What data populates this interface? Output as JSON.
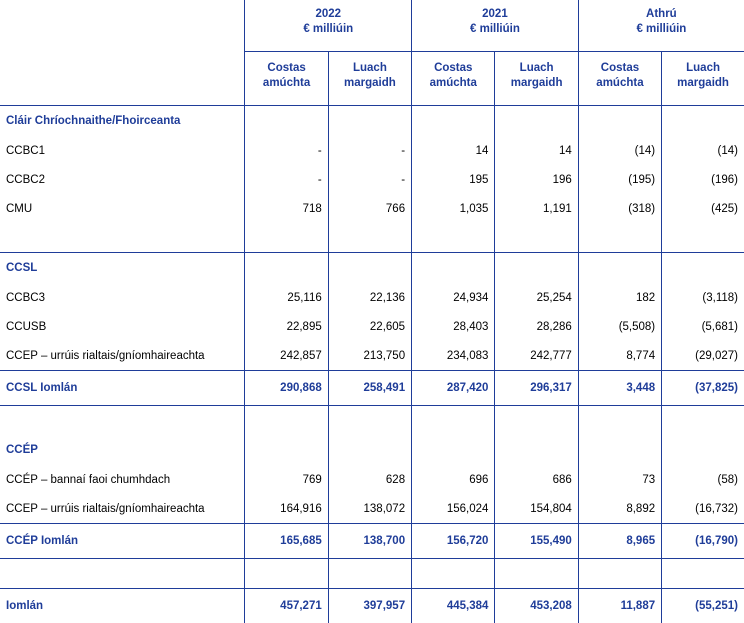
{
  "header": {
    "years": [
      {
        "year": "2022",
        "unit": "€ milliúin"
      },
      {
        "year": "2021",
        "unit": "€ milliúin"
      },
      {
        "year": "Athrú",
        "unit": "€ milliúin"
      }
    ],
    "col_cost": [
      "Costas",
      "amúchta"
    ],
    "col_market": [
      "Luach",
      "margaidh"
    ]
  },
  "sections": [
    {
      "title": "Cláir Chríochnaithe/Fhoirceanta",
      "rows": [
        {
          "label": "CCBC1",
          "values": [
            "-",
            "-",
            "14",
            "14",
            "(14)",
            "(14)"
          ]
        },
        {
          "label": "CCBC2",
          "values": [
            "-",
            "-",
            "195",
            "196",
            "(195)",
            "(196)"
          ]
        },
        {
          "label": "CMU",
          "values": [
            "718",
            "766",
            "1,035",
            "1,191",
            "(318)",
            "(425)"
          ]
        }
      ]
    },
    {
      "title": "CCSL",
      "rows": [
        {
          "label": "CCBC3",
          "values": [
            "25,116",
            "22,136",
            "24,934",
            "25,254",
            "182",
            "(3,118)"
          ]
        },
        {
          "label": "CCUSB",
          "values": [
            "22,895",
            "22,605",
            "28,403",
            "28,286",
            "(5,508)",
            "(5,681)"
          ]
        },
        {
          "label": "CCEP – urrúis rialtais/gníomhaireachta",
          "values": [
            "242,857",
            "213,750",
            "234,083",
            "242,777",
            "8,774",
            "(29,027)"
          ]
        }
      ],
      "total": {
        "label": "CCSL Iomlán",
        "values": [
          "290,868",
          "258,491",
          "287,420",
          "296,317",
          "3,448",
          "(37,825)"
        ]
      }
    },
    {
      "title": "CCÉP",
      "rows": [
        {
          "label": "CCÉP – bannaí faoi chumhdach",
          "values": [
            "769",
            "628",
            "696",
            "686",
            "73",
            "(58)"
          ]
        },
        {
          "label": "CCEP – urrúis rialtais/gníomhaireachta",
          "values": [
            "164,916",
            "138,072",
            "156,024",
            "154,804",
            "8,892",
            "(16,732)"
          ]
        }
      ],
      "total": {
        "label": "CCÉP Iomlán",
        "values": [
          "165,685",
          "138,700",
          "156,720",
          "155,490",
          "8,965",
          "(16,790)"
        ]
      }
    }
  ],
  "grand_total": {
    "label": "Iomlán",
    "values": [
      "457,271",
      "397,957",
      "445,384",
      "453,208",
      "11,887",
      "(55,251)"
    ]
  }
}
